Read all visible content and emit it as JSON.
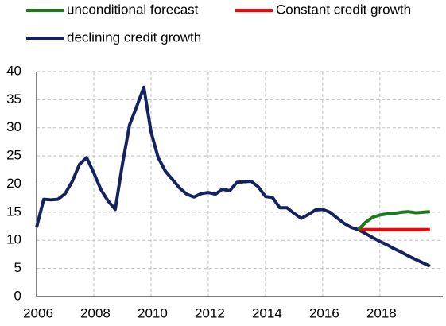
{
  "chart_data": {
    "type": "line",
    "x": [
      2006,
      2006.25,
      2006.5,
      2006.75,
      2007,
      2007.25,
      2007.5,
      2007.75,
      2008,
      2008.25,
      2008.5,
      2008.75,
      2009,
      2009.25,
      2009.5,
      2009.75,
      2010,
      2010.25,
      2010.5,
      2010.75,
      2011,
      2011.25,
      2011.5,
      2011.75,
      2012,
      2012.25,
      2012.5,
      2012.75,
      2013,
      2013.25,
      2013.5,
      2013.75,
      2014,
      2014.25,
      2014.5,
      2014.75,
      2015,
      2015.25,
      2015.5,
      2015.75,
      2016,
      2016.25,
      2016.5,
      2016.75,
      2017,
      2017.25,
      2017.5,
      2017.75,
      2018,
      2018.25,
      2018.5,
      2018.75,
      2019,
      2019.25,
      2019.5,
      2019.75
    ],
    "series": [
      {
        "name": "declining credit growth",
        "color": "#14235f",
        "values": [
          12.3,
          17.3,
          17.2,
          17.3,
          18.3,
          20.5,
          23.5,
          24.7,
          22,
          19,
          17,
          15.5,
          23.5,
          30.5,
          33.8,
          37.2,
          29.3,
          24.7,
          22.3,
          20.8,
          19.3,
          18.2,
          17.7,
          18.3,
          18.5,
          18.2,
          19.1,
          18.8,
          20.3,
          20.4,
          20.5,
          19.5,
          17.8,
          17.6,
          15.8,
          15.8,
          14.8,
          13.9,
          14.6,
          15.4,
          15.5,
          15,
          14,
          13,
          12.3,
          11.9,
          11.2,
          10.5,
          9.8,
          9.2,
          8.5,
          7.9,
          7.2,
          6.6,
          6,
          5.4
        ]
      },
      {
        "name": "Constant credit growth",
        "color": "#ff0000",
        "values": [
          null,
          null,
          null,
          null,
          null,
          null,
          null,
          null,
          null,
          null,
          null,
          null,
          null,
          null,
          null,
          null,
          null,
          null,
          null,
          null,
          null,
          null,
          null,
          null,
          null,
          null,
          null,
          null,
          null,
          null,
          null,
          null,
          null,
          null,
          null,
          null,
          null,
          null,
          null,
          null,
          null,
          null,
          null,
          null,
          null,
          11.9,
          11.9,
          11.9,
          11.9,
          11.9,
          11.9,
          11.9,
          11.9,
          11.9,
          11.9,
          11.9
        ]
      },
      {
        "name": "unconditional forecast",
        "color": "#1d7a1d",
        "values": [
          null,
          null,
          null,
          null,
          null,
          null,
          null,
          null,
          null,
          null,
          null,
          null,
          null,
          null,
          null,
          null,
          null,
          null,
          null,
          null,
          null,
          null,
          null,
          null,
          null,
          null,
          null,
          null,
          null,
          null,
          null,
          null,
          null,
          null,
          null,
          null,
          null,
          null,
          null,
          null,
          null,
          null,
          null,
          null,
          null,
          11.9,
          13.2,
          14.1,
          14.5,
          14.7,
          14.8,
          15,
          15.1,
          14.9,
          15,
          15.1
        ]
      }
    ],
    "xlim": [
      2006,
      2020.2
    ],
    "xticks": [
      2006,
      2008,
      2010,
      2012,
      2014,
      2016,
      2018
    ],
    "ylim": [
      0,
      40
    ],
    "yticks": [
      0,
      5,
      10,
      15,
      20,
      25,
      30,
      35,
      40
    ],
    "grid": true
  }
}
